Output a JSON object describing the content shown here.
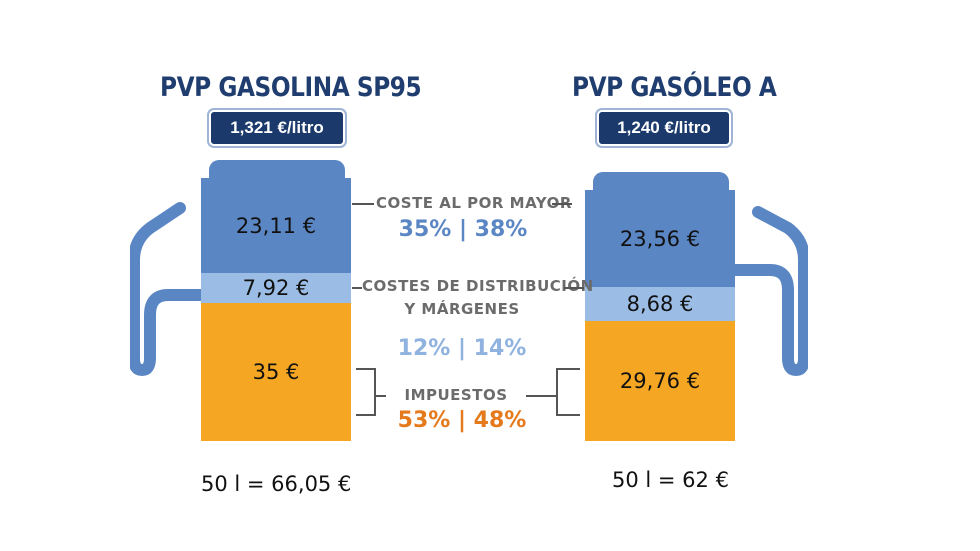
{
  "left": {
    "title": "PVP GASOLINA SP95",
    "price": "1,321 €/litro",
    "wholesale": "23,11 €",
    "distribution": "7,92 €",
    "taxes": "35 €",
    "total": "50 l = 66,05 €"
  },
  "right": {
    "title": "PVP GASÓLEO A",
    "price": "1,240 €/litro",
    "wholesale": "23,56 €",
    "distribution": "8,68 €",
    "taxes": "29,76 €",
    "total": "50 l = 62 €"
  },
  "middle": {
    "wholesale_label": "COSTE AL POR MAYOR",
    "wholesale_pct": "35% | 38%",
    "distribution_label_1": "COSTES DE DISTRIBUCIÓN",
    "distribution_label_2": "Y MÁRGENES",
    "distribution_pct": "12% | 14%",
    "taxes_label": "IMPUESTOS",
    "taxes_pct": "53% | 48%"
  },
  "colors": {
    "wholesale": "#5b86c4",
    "distribution": "#9bbce4",
    "taxes": "#f5a623",
    "title": "#1f3d6e"
  },
  "icons": [
    "fuel-nozzle-icon",
    "fuel-nozzle-icon"
  ]
}
